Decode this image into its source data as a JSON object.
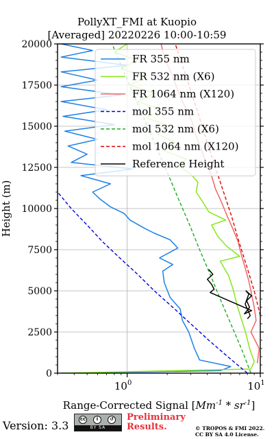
{
  "chart_data": {
    "type": "line",
    "title": "PollyXT_FMI at Kuopio",
    "subtitle": "[Averaged] 20220226 10:00-10:59",
    "xlabel": "Range-Corrected Signal [Mm^-1 * sr^-1]",
    "ylabel": "Height (m)",
    "xscale": "log",
    "xlim": [
      0.3,
      10
    ],
    "ylim": [
      0,
      20000
    ],
    "xticks": [
      1,
      10
    ],
    "xtick_labels": [
      "10^0",
      "10^1"
    ],
    "yticks": [
      0,
      2500,
      5000,
      7500,
      10000,
      12500,
      15000,
      17500,
      20000
    ],
    "grid": true,
    "legend_position": "top-right",
    "series": [
      {
        "name": "FR 355 nm",
        "color": "#1a80e6",
        "style": "solid",
        "points": [
          [
            0.32,
            0
          ],
          [
            5.0,
            150
          ],
          [
            6.0,
            400
          ],
          [
            3.5,
            800
          ],
          [
            3.2,
            1500
          ],
          [
            2.9,
            2500
          ],
          [
            2.6,
            3200
          ],
          [
            2.5,
            3900
          ],
          [
            2.1,
            4600
          ],
          [
            1.9,
            5500
          ],
          [
            1.85,
            6200
          ],
          [
            2.2,
            6600
          ],
          [
            1.75,
            7000
          ],
          [
            2.4,
            7600
          ],
          [
            2.1,
            8100
          ],
          [
            1.6,
            8500
          ],
          [
            1.35,
            8800
          ],
          [
            1.05,
            9300
          ],
          [
            0.95,
            9700
          ],
          [
            0.75,
            10100
          ],
          [
            0.62,
            10600
          ],
          [
            0.55,
            11000
          ],
          [
            0.75,
            11500
          ],
          [
            0.45,
            12000
          ],
          [
            1.1,
            12400
          ],
          [
            0.38,
            12800
          ],
          [
            0.5,
            13300
          ],
          [
            0.36,
            13800
          ],
          [
            0.6,
            14200
          ],
          [
            0.34,
            14700
          ],
          [
            0.8,
            15100
          ],
          [
            0.33,
            15600
          ],
          [
            0.7,
            16000
          ],
          [
            0.32,
            16500
          ],
          [
            0.9,
            16900
          ],
          [
            0.32,
            17400
          ],
          [
            0.6,
            17800
          ],
          [
            0.32,
            18300
          ],
          [
            1.0,
            18700
          ],
          [
            0.32,
            19200
          ],
          [
            0.55,
            19600
          ],
          [
            0.32,
            20000
          ]
        ]
      },
      {
        "name": "FR 532 nm (X6)",
        "color": "#88e619",
        "style": "solid",
        "points": [
          [
            0.32,
            0
          ],
          [
            8.5,
            250
          ],
          [
            9.0,
            700
          ],
          [
            8.3,
            1500
          ],
          [
            7.8,
            2400
          ],
          [
            7.2,
            3300
          ],
          [
            6.7,
            4100
          ],
          [
            6.3,
            5000
          ],
          [
            5.8,
            5900
          ],
          [
            5.0,
            6800
          ],
          [
            7.0,
            7100
          ],
          [
            5.6,
            7700
          ],
          [
            4.8,
            8300
          ],
          [
            4.3,
            9000
          ],
          [
            5.5,
            9300
          ],
          [
            4.1,
            9800
          ],
          [
            3.7,
            10400
          ],
          [
            3.3,
            11000
          ],
          [
            3.4,
            11600
          ],
          [
            3.0,
            12100
          ],
          [
            2.4,
            12600
          ],
          [
            2.8,
            13000
          ],
          [
            1.9,
            13500
          ],
          [
            2.3,
            14000
          ],
          [
            1.7,
            14500
          ],
          [
            2.1,
            15000
          ],
          [
            1.4,
            15500
          ],
          [
            1.8,
            16000
          ],
          [
            1.2,
            16500
          ],
          [
            1.6,
            17000
          ],
          [
            1.05,
            17500
          ],
          [
            1.4,
            18000
          ],
          [
            0.9,
            18500
          ],
          [
            1.2,
            19000
          ],
          [
            0.8,
            19500
          ],
          [
            1.0,
            20000
          ]
        ]
      },
      {
        "name": "FR 1064 nm (X120)",
        "color": "#f06464",
        "style": "solid",
        "points": [
          [
            9.5,
            600
          ],
          [
            9.8,
            1500
          ],
          [
            8.5,
            2500
          ],
          [
            9.3,
            3200
          ],
          [
            9.0,
            4000
          ],
          [
            8.6,
            4800
          ],
          [
            8.2,
            5600
          ],
          [
            7.7,
            6400
          ],
          [
            7.2,
            7200
          ],
          [
            6.8,
            8000
          ],
          [
            6.2,
            8800
          ],
          [
            5.6,
            9600
          ],
          [
            5.1,
            10400
          ],
          [
            4.6,
            11200
          ],
          [
            4.3,
            12000
          ],
          [
            3.9,
            12800
          ],
          [
            3.6,
            13600
          ],
          [
            3.3,
            14400
          ],
          [
            3.1,
            15200
          ],
          [
            2.8,
            16000
          ],
          [
            2.5,
            16800
          ],
          [
            2.3,
            17600
          ],
          [
            2.1,
            18400
          ],
          [
            1.9,
            19200
          ],
          [
            1.8,
            20000
          ]
        ]
      },
      {
        "name": "mol 355 nm",
        "color": "#0000e0",
        "style": "dashed",
        "points": [
          [
            8.0,
            0
          ],
          [
            5.7,
            1000
          ],
          [
            4.1,
            2000
          ],
          [
            3.0,
            3000
          ],
          [
            2.2,
            4000
          ],
          [
            1.6,
            5000
          ],
          [
            1.2,
            6000
          ],
          [
            0.88,
            7000
          ],
          [
            0.65,
            8000
          ],
          [
            0.5,
            9000
          ],
          [
            0.38,
            10000
          ],
          [
            0.3,
            11000
          ]
        ]
      },
      {
        "name": "mol 532 nm (X6)",
        "color": "#1faa1f",
        "style": "dashed",
        "points": [
          [
            8.5,
            0
          ],
          [
            7.2,
            1500
          ],
          [
            6.0,
            3000
          ],
          [
            5.0,
            4500
          ],
          [
            4.2,
            6000
          ],
          [
            3.5,
            7500
          ],
          [
            2.95,
            9000
          ],
          [
            2.45,
            10500
          ],
          [
            2.05,
            12000
          ],
          [
            1.7,
            13500
          ],
          [
            1.42,
            15000
          ],
          [
            1.18,
            16500
          ],
          [
            0.98,
            18000
          ],
          [
            0.82,
            19500
          ],
          [
            0.77,
            20000
          ]
        ]
      },
      {
        "name": "mol 1064 nm (X120)",
        "color": "#e00000",
        "style": "dashed",
        "points": [
          [
            10,
            3500
          ],
          [
            9.0,
            5000
          ],
          [
            7.9,
            6500
          ],
          [
            6.9,
            8000
          ],
          [
            6.1,
            9500
          ],
          [
            5.3,
            11000
          ],
          [
            4.6,
            12500
          ],
          [
            4.0,
            14000
          ],
          [
            3.5,
            15500
          ],
          [
            3.05,
            17000
          ],
          [
            2.65,
            18500
          ],
          [
            2.3,
            20000
          ]
        ]
      },
      {
        "name": "Reference Height",
        "color": "#000000",
        "style": "solid",
        "points": [
          [
            4.1,
            6300
          ],
          [
            4.4,
            6000
          ],
          [
            4.0,
            5700
          ],
          [
            4.3,
            5400
          ],
          [
            4.5,
            5100
          ],
          [
            4.2,
            4900
          ],
          [
            8.6,
            3800
          ],
          [
            7.6,
            3600
          ],
          [
            8.3,
            4000
          ],
          [
            7.9,
            4400
          ],
          [
            8.6,
            4700
          ],
          [
            7.8,
            5000
          ],
          [
            8.2,
            4800
          ],
          [
            7.7,
            4200
          ],
          [
            8.4,
            3500
          ],
          [
            8.0,
            3300
          ]
        ]
      }
    ]
  },
  "footer": {
    "version": "Version: 3.3",
    "license_badge_text": "BY SA",
    "preliminary_line1": "Preliminary",
    "preliminary_line2": "Results.",
    "copyright_line1": "© TROPOS & FMI 2022.",
    "copyright_line2": "CC BY SA 4.0 License."
  }
}
